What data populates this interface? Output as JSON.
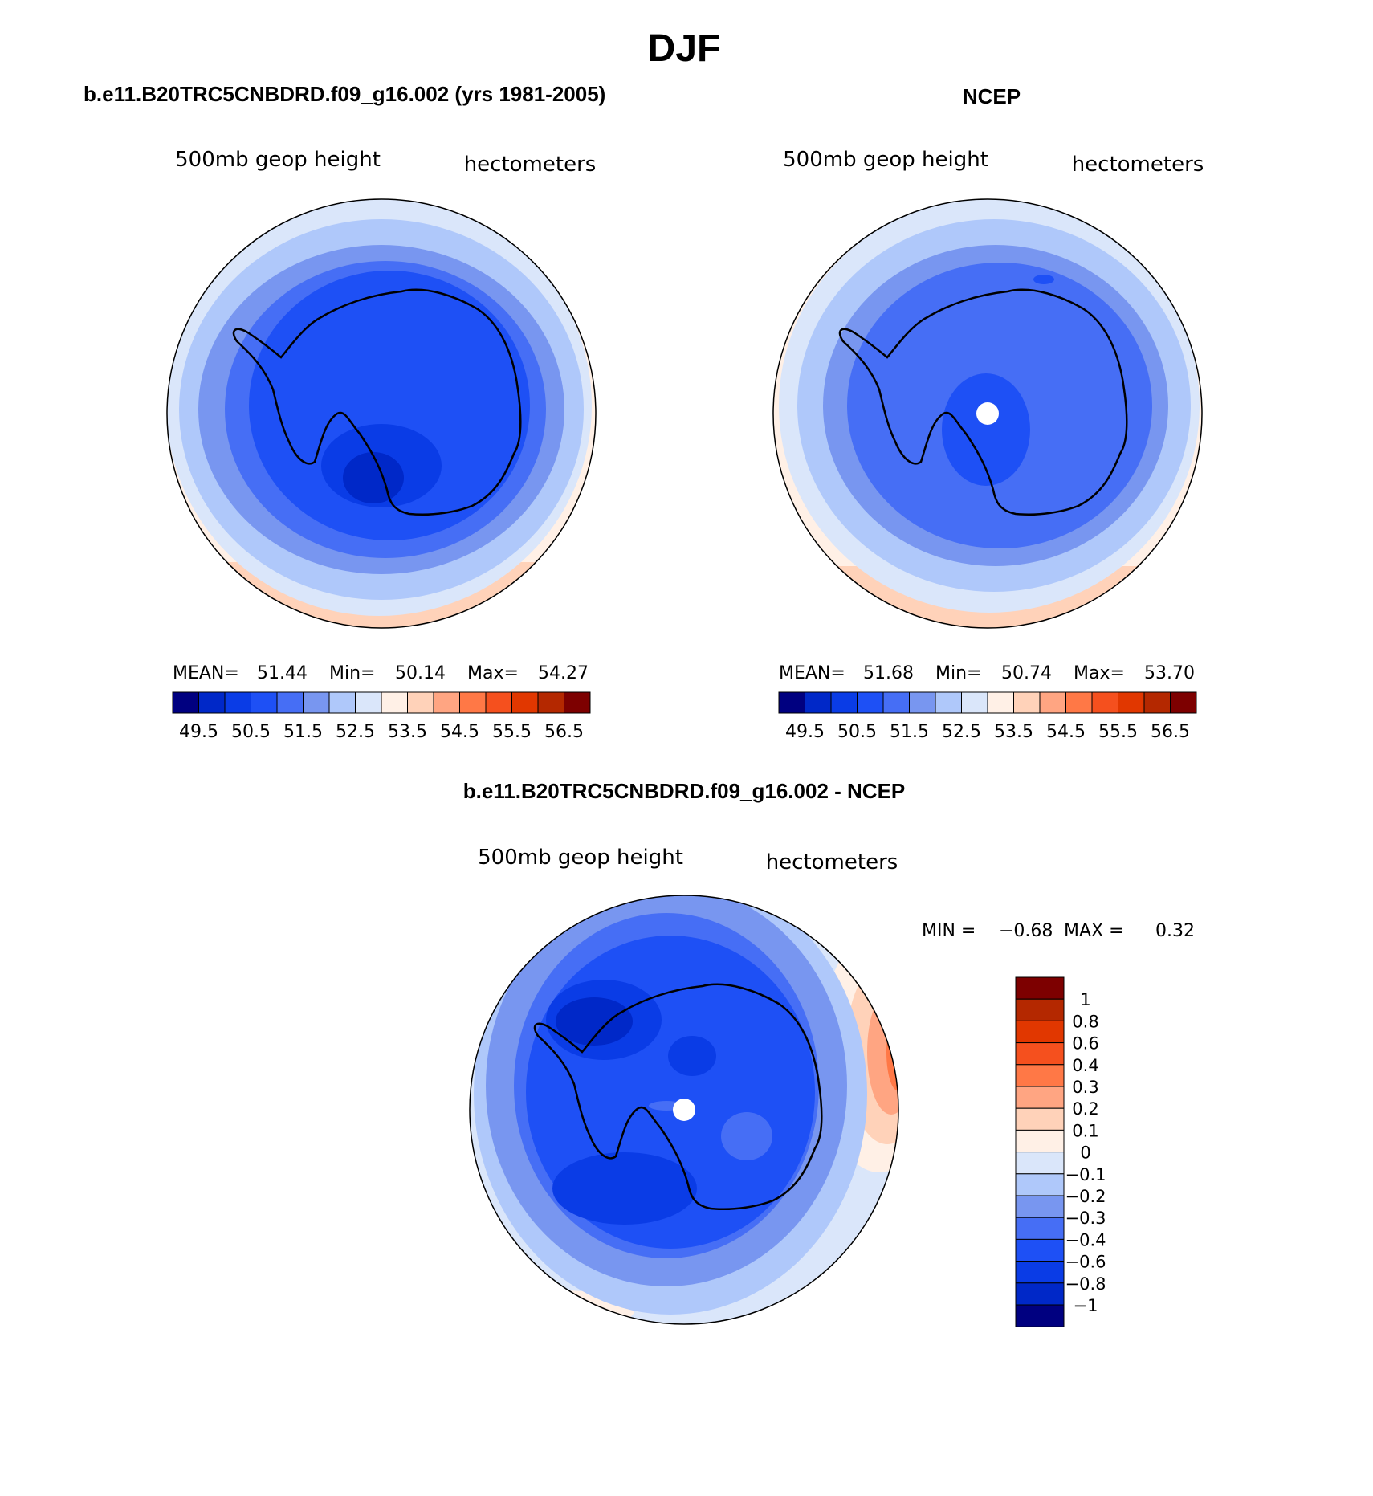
{
  "page": {
    "title": "DJF"
  },
  "colors": {
    "palette": [
      "#000080",
      "#0028c8",
      "#0a3ce6",
      "#1e50f5",
      "#466ef5",
      "#7896f0",
      "#afc8fa",
      "#dae6fa",
      "#fff0e6",
      "#ffd2b9",
      "#ffa582",
      "#ff7846",
      "#f5501e",
      "#e13700",
      "#b42800",
      "#7d0000"
    ],
    "coast": "#000000"
  },
  "chart_data": [
    {
      "type": "heatmap",
      "panel_title": "b.e11.B20TRC5CNBDRD.f09_g16.002 (yrs 1981-2005)",
      "left_label": "500mb geop height",
      "right_label": "hectometers",
      "stats": {
        "mean_label": "MEAN=",
        "mean": "51.44",
        "min_label": "Min=",
        "min": "50.14",
        "max_label": "Max=",
        "max": "54.27"
      },
      "colorbar_ticks": [
        "49.5",
        "50.5",
        "51.5",
        "52.5",
        "53.5",
        "54.5",
        "55.5",
        "56.5"
      ],
      "contour_levels": [
        49.5,
        50,
        50.5,
        51,
        51.5,
        52,
        52.5,
        53,
        53.5,
        54,
        54.5,
        55,
        55.5,
        56,
        56.5
      ],
      "projection": "south-polar-stereographic"
    },
    {
      "type": "heatmap",
      "panel_title": "NCEP",
      "left_label": "500mb geop height",
      "right_label": "hectometers",
      "stats": {
        "mean_label": "MEAN=",
        "mean": "51.68",
        "min_label": "Min=",
        "min": "50.74",
        "max_label": "Max=",
        "max": "53.70"
      },
      "colorbar_ticks": [
        "49.5",
        "50.5",
        "51.5",
        "52.5",
        "53.5",
        "54.5",
        "55.5",
        "56.5"
      ],
      "contour_levels": [
        49.5,
        50,
        50.5,
        51,
        51.5,
        52,
        52.5,
        53,
        53.5,
        54,
        54.5,
        55,
        55.5,
        56,
        56.5
      ],
      "projection": "south-polar-stereographic"
    },
    {
      "type": "heatmap",
      "panel_title": "b.e11.B20TRC5CNBDRD.f09_g16.002 - NCEP",
      "left_label": "500mb geop height",
      "right_label": "hectometers",
      "stats": {
        "min_label": "MIN =",
        "min": "−0.68",
        "max_label": "MAX =",
        "max": "0.32"
      },
      "colorbar_ticks": [
        "1",
        "0.8",
        "0.6",
        "0.4",
        "0.3",
        "0.2",
        "0.1",
        "0",
        "−0.1",
        "−0.2",
        "−0.3",
        "−0.4",
        "−0.6",
        "−0.8",
        "−1"
      ],
      "contour_levels": [
        -1,
        -0.8,
        -0.6,
        -0.4,
        -0.3,
        -0.2,
        -0.1,
        0,
        0.1,
        0.2,
        0.3,
        0.4,
        0.6,
        0.8,
        1
      ],
      "projection": "south-polar-stereographic"
    }
  ]
}
